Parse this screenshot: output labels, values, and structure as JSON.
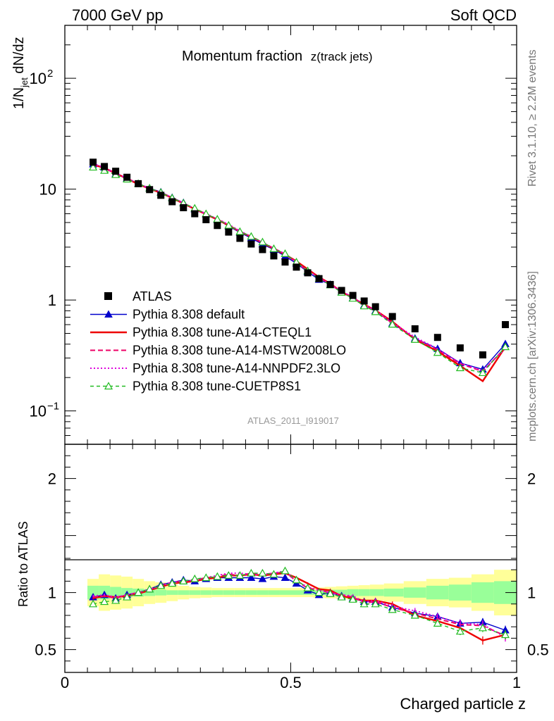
{
  "header": {
    "left": "7000 GeV pp",
    "right": "Soft QCD"
  },
  "side_labels": {
    "rivet": "Rivet 3.1.10, ≥ 2.2M events",
    "mcplots": "mcplots.cern.ch [arXiv:1306.3436]"
  },
  "chart_data": {
    "type": "line",
    "title": "Momentum fraction",
    "title_sub": "z(track jets)",
    "reference_key": "ATLAS_2011_I919017",
    "xlabel": "Charged particle z",
    "ylabel_main": "1/N",
    "ylabel_sub": "jet",
    "ylabel_tail": " dN/dz",
    "ylabel_ratio": "Ratio to ATLAS",
    "xlim": [
      0,
      1
    ],
    "ylim_main": [
      0.05,
      300
    ],
    "yscale_main": "log",
    "ylim_ratio": [
      0.3,
      2.3
    ],
    "x_ticks": [
      {
        "value": 0,
        "label": "0"
      },
      {
        "value": 0.5,
        "label": "0.5"
      },
      {
        "value": 1,
        "label": "1"
      }
    ],
    "y_ticks_main": [
      {
        "value": 100,
        "label": "10",
        "exp": "2"
      },
      {
        "value": 10,
        "label": "10",
        "exp": ""
      },
      {
        "value": 1,
        "label": "1",
        "exp": ""
      },
      {
        "value": 0.1,
        "label": "10",
        "exp": "−1"
      }
    ],
    "y_ticks_ratio": [
      {
        "value": 2,
        "label": "2"
      },
      {
        "value": 1,
        "label": "1"
      },
      {
        "value": 0.5,
        "label": "0.5"
      }
    ],
    "x": [
      0.0625,
      0.0875,
      0.1125,
      0.1375,
      0.1625,
      0.1875,
      0.2125,
      0.2375,
      0.2625,
      0.2875,
      0.3125,
      0.3375,
      0.3625,
      0.3875,
      0.4125,
      0.4375,
      0.4625,
      0.4875,
      0.5125,
      0.5375,
      0.5625,
      0.5875,
      0.6125,
      0.6375,
      0.6625,
      0.6875,
      0.725,
      0.775,
      0.825,
      0.875,
      0.925,
      0.975
    ],
    "data": {
      "name": "ATLAS",
      "values": [
        17.5,
        16.0,
        14.5,
        12.8,
        11.2,
        9.9,
        8.8,
        7.7,
        6.8,
        6.0,
        5.3,
        4.7,
        4.1,
        3.6,
        3.2,
        2.85,
        2.5,
        2.2,
        1.98,
        1.76,
        1.56,
        1.38,
        1.22,
        1.1,
        0.98,
        0.87,
        0.71,
        0.55,
        0.46,
        0.37,
        0.32,
        0.6
      ]
    },
    "ratio_bands": {
      "inner": [
        0.06,
        0.06,
        0.05,
        0.04,
        0.035,
        0.03,
        0.025,
        0.02,
        0.02,
        0.02,
        0.02,
        0.02,
        0.02,
        0.02,
        0.02,
        0.02,
        0.02,
        0.02,
        0.02,
        0.02,
        0.02,
        0.025,
        0.025,
        0.03,
        0.03,
        0.03,
        0.035,
        0.045,
        0.06,
        0.07,
        0.09,
        0.1
      ],
      "outer": [
        0.12,
        0.16,
        0.15,
        0.14,
        0.12,
        0.1,
        0.09,
        0.075,
        0.06,
        0.05,
        0.045,
        0.04,
        0.04,
        0.04,
        0.04,
        0.04,
        0.04,
        0.04,
        0.04,
        0.04,
        0.045,
        0.05,
        0.055,
        0.06,
        0.065,
        0.07,
        0.08,
        0.1,
        0.12,
        0.13,
        0.16,
        0.2
      ]
    },
    "series": [
      {
        "name": "Pythia 8.308 default",
        "color": "#0000cc",
        "dash": "",
        "marker": "triangle-filled",
        "width": 1.4,
        "ratio": [
          0.96,
          0.98,
          0.95,
          0.98,
          1.0,
          1.03,
          1.07,
          1.09,
          1.11,
          1.1,
          1.12,
          1.13,
          1.13,
          1.13,
          1.13,
          1.12,
          1.14,
          1.13,
          1.08,
          1.02,
          0.98,
          1.0,
          0.97,
          0.95,
          0.92,
          0.92,
          0.87,
          0.82,
          0.79,
          0.73,
          0.74,
          0.67
        ]
      },
      {
        "name": "Pythia 8.308 tune-A14-CTEQL1",
        "color": "#ee0000",
        "dash": "",
        "marker": "",
        "width": 2.4,
        "ratio": [
          0.95,
          0.97,
          0.96,
          0.97,
          0.99,
          1.02,
          1.05,
          1.08,
          1.09,
          1.1,
          1.12,
          1.13,
          1.15,
          1.15,
          1.16,
          1.15,
          1.16,
          1.17,
          1.13,
          1.08,
          1.03,
          1.02,
          0.97,
          0.95,
          0.93,
          0.93,
          0.9,
          0.8,
          0.75,
          0.69,
          0.58,
          0.63
        ]
      },
      {
        "name": "Pythia 8.308 tune-A14-MSTW2008LO",
        "color": "#ee0066",
        "dash": "7,4",
        "marker": "",
        "width": 2.0,
        "ratio": [
          0.96,
          0.97,
          0.95,
          0.98,
          1.0,
          1.02,
          1.06,
          1.09,
          1.1,
          1.11,
          1.13,
          1.14,
          1.16,
          1.15,
          1.17,
          1.16,
          1.17,
          1.18,
          1.1,
          1.04,
          1.02,
          1.0,
          0.98,
          0.96,
          0.91,
          0.92,
          0.87,
          0.82,
          0.77,
          0.72,
          0.71,
          0.62
        ]
      },
      {
        "name": "Pythia 8.308 tune-A14-NNPDF2.3LO",
        "color": "#dd00dd",
        "dash": "2,3",
        "marker": "",
        "width": 2.0,
        "ratio": [
          0.97,
          0.98,
          0.96,
          0.98,
          1.0,
          1.03,
          1.06,
          1.09,
          1.1,
          1.11,
          1.13,
          1.15,
          1.17,
          1.17,
          1.16,
          1.16,
          1.17,
          1.19,
          1.1,
          1.05,
          1.02,
          1.0,
          0.98,
          0.97,
          0.92,
          0.93,
          0.88,
          0.84,
          0.79,
          0.73,
          0.72,
          0.61
        ]
      },
      {
        "name": "Pythia 8.308 tune-CUETP8S1",
        "color": "#22bb22",
        "dash": "5,4",
        "marker": "triangle-open",
        "width": 1.4,
        "ratio": [
          0.9,
          0.92,
          0.93,
          0.96,
          1.0,
          1.03,
          1.06,
          1.08,
          1.1,
          1.12,
          1.13,
          1.14,
          1.15,
          1.15,
          1.17,
          1.17,
          1.16,
          1.19,
          1.11,
          1.04,
          1.0,
          0.99,
          0.96,
          0.94,
          0.9,
          0.9,
          0.85,
          0.8,
          0.73,
          0.66,
          0.69,
          0.63
        ]
      }
    ]
  }
}
